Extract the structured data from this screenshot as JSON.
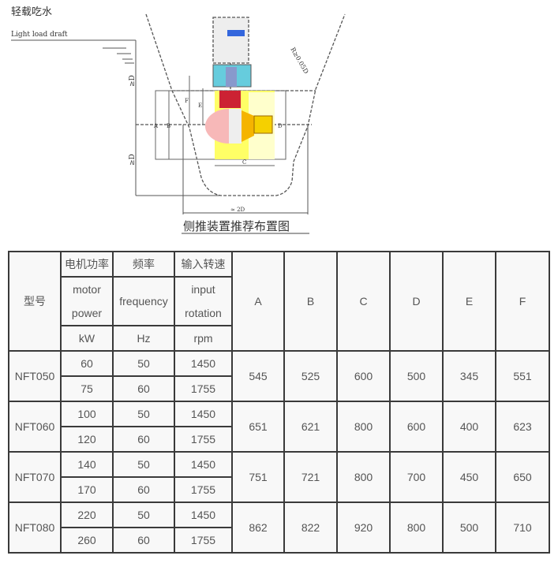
{
  "diagram": {
    "label_cn": "轻载吃水",
    "label_en": "Light load draft",
    "dim_ge_d_top": "≥D",
    "dim_ge_d_bottom": "≥D",
    "radius": "R≥0.05D",
    "dim_a": "A",
    "dim_b": "B",
    "dim_c": "C",
    "dim_d": "D",
    "dim_e": "E",
    "dim_f": "F",
    "dim_2d": "≈ 2D",
    "caption": "侧推装置推荐布置图",
    "colors": {
      "yellow": "#ffff66",
      "red": "#cc2233",
      "blue": "#3366dd",
      "cyan": "#66ccdd",
      "orange": "#f5b400"
    }
  },
  "table": {
    "headers": {
      "model": "型号",
      "power_cn": "电机功率",
      "power_en_1": "motor",
      "power_en_2": "power",
      "power_unit": "kW",
      "freq_cn": "频率",
      "freq_en": "frequency",
      "freq_unit": "Hz",
      "speed_cn": "输入转速",
      "speed_en_1": "input",
      "speed_en_2": "rotation",
      "speed_unit": "rpm",
      "dims": [
        "A",
        "B",
        "C",
        "D",
        "E",
        "F"
      ]
    },
    "rows": [
      {
        "model": "NFT050",
        "sub": [
          {
            "kw": "60",
            "hz": "50",
            "rpm": "1450"
          },
          {
            "kw": "75",
            "hz": "60",
            "rpm": "1755"
          }
        ],
        "dims": [
          "545",
          "525",
          "600",
          "500",
          "345",
          "551"
        ]
      },
      {
        "model": "NFT060",
        "sub": [
          {
            "kw": "100",
            "hz": "50",
            "rpm": "1450"
          },
          {
            "kw": "120",
            "hz": "60",
            "rpm": "1755"
          }
        ],
        "dims": [
          "651",
          "621",
          "800",
          "600",
          "400",
          "623"
        ]
      },
      {
        "model": "NFT070",
        "sub": [
          {
            "kw": "140",
            "hz": "50",
            "rpm": "1450"
          },
          {
            "kw": "170",
            "hz": "60",
            "rpm": "1755"
          }
        ],
        "dims": [
          "751",
          "721",
          "800",
          "700",
          "450",
          "650"
        ]
      },
      {
        "model": "NFT080",
        "sub": [
          {
            "kw": "220",
            "hz": "50",
            "rpm": "1450"
          },
          {
            "kw": "260",
            "hz": "60",
            "rpm": "1755"
          }
        ],
        "dims": [
          "862",
          "822",
          "920",
          "800",
          "500",
          "710"
        ]
      }
    ]
  }
}
